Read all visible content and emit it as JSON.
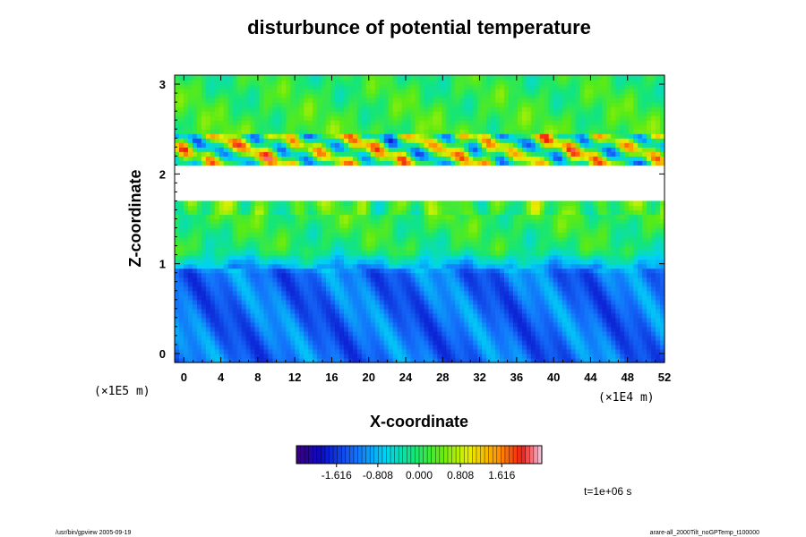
{
  "chart_data": {
    "type": "heatmap",
    "title": "disturbunce of potential temperature",
    "xlabel": "X-coordinate",
    "ylabel": "Z-coordinate",
    "x_unit": "(×1E4 m)",
    "y_unit": "(×1E5 m)",
    "xlim": [
      -1,
      52
    ],
    "ylim": [
      -0.1,
      3.1
    ],
    "x_ticks": [
      0,
      4,
      8,
      12,
      16,
      20,
      24,
      28,
      32,
      36,
      40,
      44,
      48,
      52
    ],
    "y_ticks": [
      0,
      1,
      2,
      3
    ],
    "colorbar": {
      "ticks": [
        -1.616,
        -0.808,
        0.0,
        0.808,
        1.616
      ],
      "tick_labels": [
        "-1.616",
        "-0.808",
        "0.000",
        "0.808",
        "1.616"
      ],
      "min": -2.4,
      "max": 2.4,
      "palette": "rainbow"
    },
    "missing_band": {
      "z_low": 1.72,
      "z_high": 2.1
    },
    "time_label": "t=1e+06 s"
  },
  "footer": {
    "left": "/usr/bin/gpview 2005-09-19",
    "right": "arare-all_2000Tilt_noGPTemp_t100000"
  }
}
